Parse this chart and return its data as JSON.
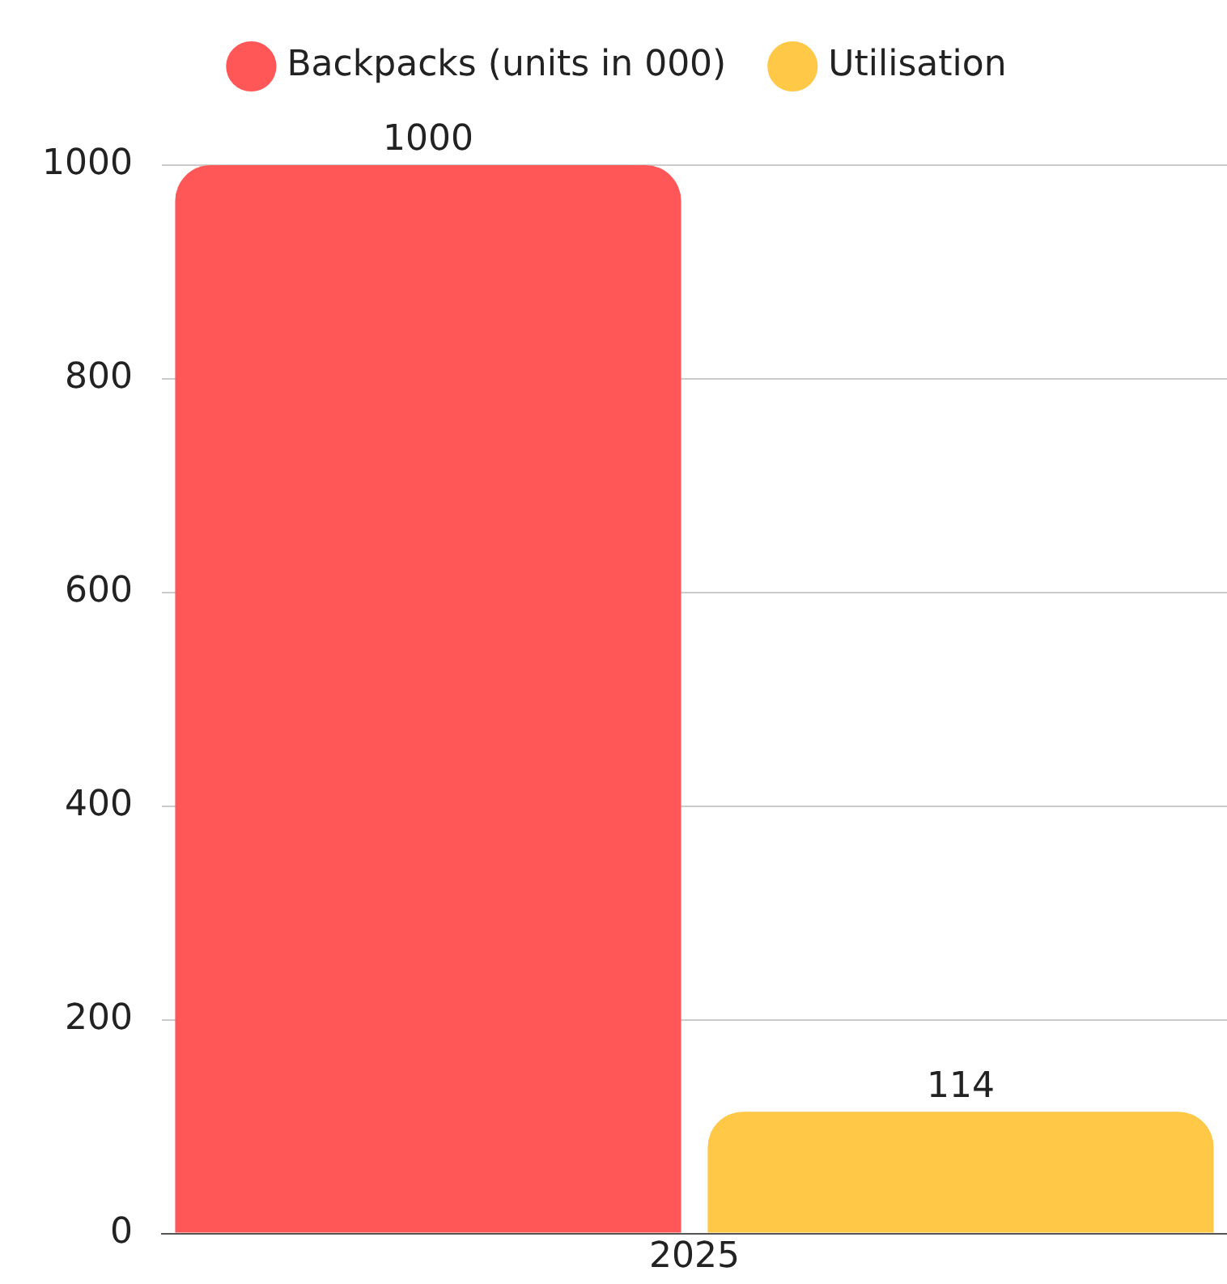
{
  "chart_data": {
    "type": "bar",
    "categories": [
      "2025"
    ],
    "series": [
      {
        "name": "Backpacks (units in 000)",
        "color": "#ff5757",
        "values": [
          1000
        ]
      },
      {
        "name": "Utilisation",
        "color": "#ffc847",
        "values": [
          114
        ]
      }
    ],
    "ylim": [
      0,
      1000
    ],
    "yticks": [
      0,
      200,
      400,
      600,
      800,
      1000
    ],
    "grid": "y",
    "legend": "top",
    "data_labels": true
  }
}
